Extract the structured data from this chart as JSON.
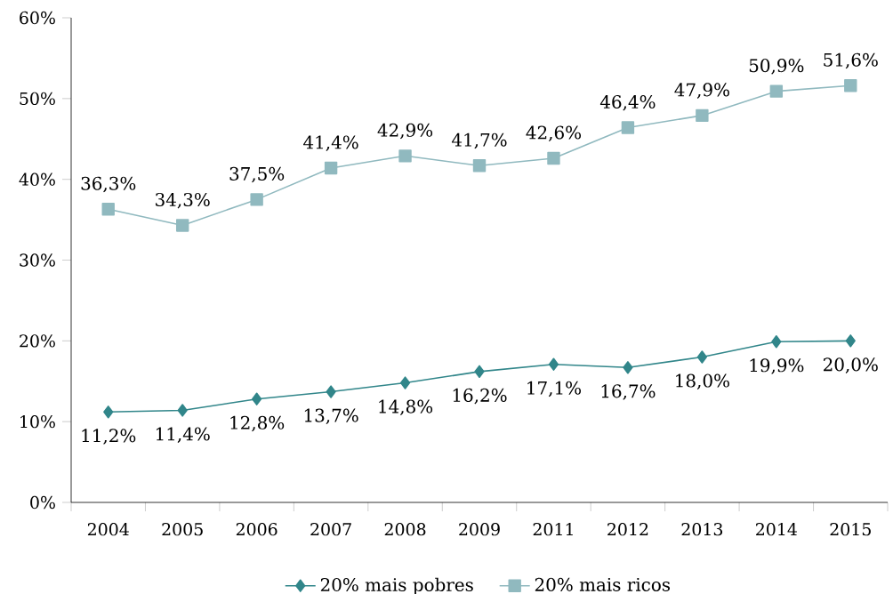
{
  "chart_data": {
    "type": "line",
    "categories": [
      "2004",
      "2005",
      "2006",
      "2007",
      "2008",
      "2009",
      "2011",
      "2012",
      "2013",
      "2014",
      "2015"
    ],
    "series": [
      {
        "name": "20% mais pobres",
        "color": "#31868a",
        "marker": "diamond",
        "values": [
          11.2,
          11.4,
          12.8,
          13.7,
          14.8,
          16.2,
          17.1,
          16.7,
          18.0,
          19.9,
          20.0
        ],
        "value_labels": [
          "11,2%",
          "11,4%",
          "12,8%",
          "13,7%",
          "14,8%",
          "16,2%",
          "17,1%",
          "16,7%",
          "18,0%",
          "19,9%",
          "20,0%"
        ]
      },
      {
        "name": "20% mais ricos",
        "color": "#90b9bf",
        "marker": "square",
        "values": [
          36.3,
          34.3,
          37.5,
          41.4,
          42.9,
          41.7,
          42.6,
          46.4,
          47.9,
          50.9,
          51.6
        ],
        "value_labels": [
          "36,3%",
          "34,3%",
          "37,5%",
          "41,4%",
          "42,9%",
          "41,7%",
          "42,6%",
          "46,4%",
          "47,9%",
          "50,9%",
          "51,6%"
        ]
      }
    ],
    "ylim": [
      0,
      60
    ],
    "yticks": [
      {
        "value": 0,
        "label": "0%"
      },
      {
        "value": 10,
        "label": "10%"
      },
      {
        "value": 20,
        "label": "20%"
      },
      {
        "value": 30,
        "label": "30%"
      },
      {
        "value": 40,
        "label": "40%"
      },
      {
        "value": 50,
        "label": "50%"
      },
      {
        "value": 60,
        "label": "60%"
      }
    ],
    "grid": false,
    "legend": "bottom"
  }
}
